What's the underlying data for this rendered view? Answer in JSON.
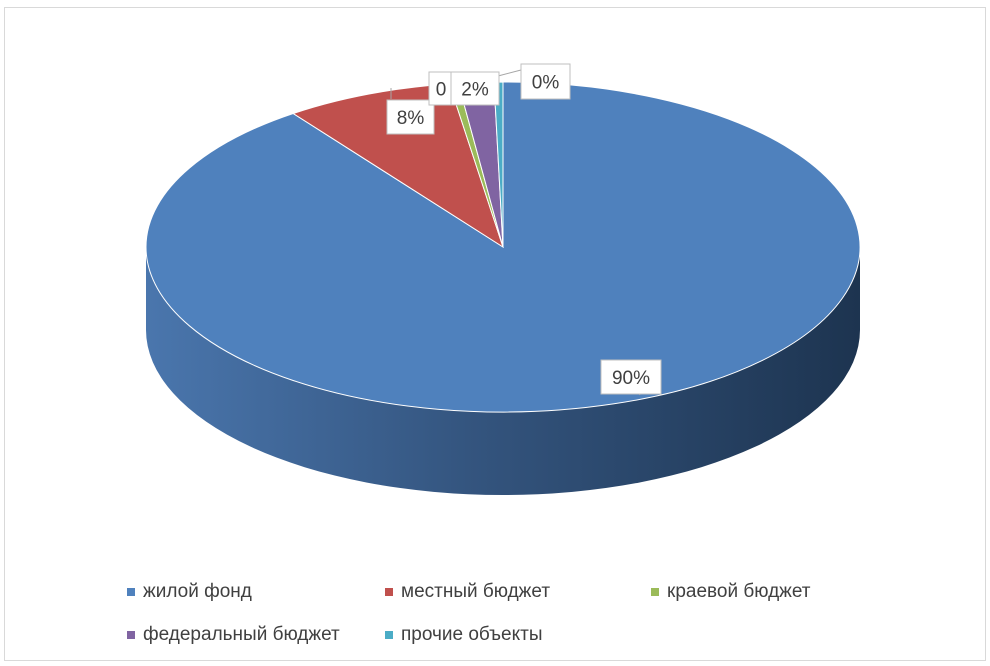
{
  "chart_data": {
    "type": "pie",
    "style": "3d",
    "title": "",
    "categories": [
      "жилой фонд",
      "местный бюджет",
      "краевой бюджет",
      "федеральный бюджет",
      "прочие объекты"
    ],
    "values": [
      90,
      7.6,
      0.4,
      1.6,
      0.4
    ],
    "data_labels": [
      "90%",
      "8%",
      "0",
      "2%",
      "0%"
    ],
    "colors": [
      "#4f81bd",
      "#c0504d",
      "#9bbb59",
      "#8064a2",
      "#4bacc6"
    ],
    "legend_position": "bottom"
  }
}
